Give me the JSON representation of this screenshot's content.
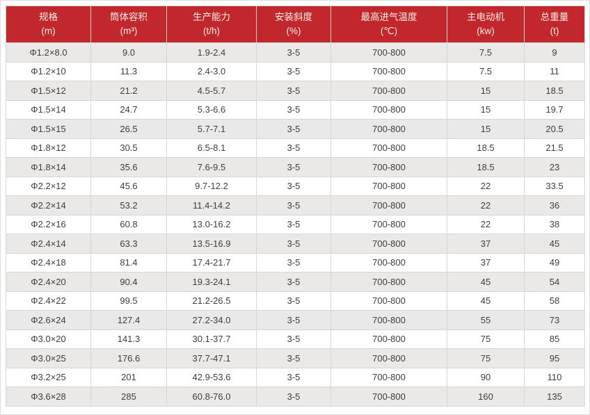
{
  "chart_data": {
    "type": "table",
    "columns": [
      {
        "label": "规格",
        "unit": "(m)"
      },
      {
        "label": "筒体容积",
        "unit": "(m³)"
      },
      {
        "label": "生产能力",
        "unit": "(t/h)"
      },
      {
        "label": "安装斜度",
        "unit": "(%)"
      },
      {
        "label": "最高进气温度",
        "unit": "(℃)"
      },
      {
        "label": "主电动机",
        "unit": "(kw)"
      },
      {
        "label": "总重量",
        "unit": "(t)"
      }
    ],
    "rows": [
      [
        "Φ1.2×8.0",
        "9.0",
        "1.9-2.4",
        "3-5",
        "700-800",
        "7.5",
        "9"
      ],
      [
        "Φ1.2×10",
        "11.3",
        "2.4-3.0",
        "3-5",
        "700-800",
        "7.5",
        "11"
      ],
      [
        "Φ1.5×12",
        "21.2",
        "4.5-5.7",
        "3-5",
        "700-800",
        "15",
        "18.5"
      ],
      [
        "Φ1.5×14",
        "24.7",
        "5.3-6.6",
        "3-5",
        "700-800",
        "15",
        "19.7"
      ],
      [
        "Φ1.5×15",
        "26.5",
        "5.7-7.1",
        "3-5",
        "700-800",
        "15",
        "20.5"
      ],
      [
        "Φ1.8×12",
        "30.5",
        "6.5-8.1",
        "3-5",
        "700-800",
        "18.5",
        "21.5"
      ],
      [
        "Φ1.8×14",
        "35.6",
        "7.6-9.5",
        "3-5",
        "700-800",
        "18.5",
        "23"
      ],
      [
        "Φ2.2×12",
        "45.6",
        "9.7-12.2",
        "3-5",
        "700-800",
        "22",
        "33.5"
      ],
      [
        "Φ2.2×14",
        "53.2",
        "11.4-14.2",
        "3-5",
        "700-800",
        "22",
        "36"
      ],
      [
        "Φ2.2×16",
        "60.8",
        "13.0-16.2",
        "3-5",
        "700-800",
        "22",
        "38"
      ],
      [
        "Φ2.4×14",
        "63.3",
        "13.5-16.9",
        "3-5",
        "700-800",
        "37",
        "45"
      ],
      [
        "Φ2.4×18",
        "81.4",
        "17.4-21.7",
        "3-5",
        "700-800",
        "37",
        "49"
      ],
      [
        "Φ2.4×20",
        "90.4",
        "19.3-24.1",
        "3-5",
        "700-800",
        "45",
        "54"
      ],
      [
        "Φ2.4×22",
        "99.5",
        "21.2-26.5",
        "3-5",
        "700-800",
        "45",
        "58"
      ],
      [
        "Φ2.6×24",
        "127.4",
        "27.2-34.0",
        "3-5",
        "700-800",
        "55",
        "73"
      ],
      [
        "Φ3.0×20",
        "141.3",
        "30.1-37.7",
        "3-5",
        "700-800",
        "75",
        "85"
      ],
      [
        "Φ3.0×25",
        "176.6",
        "37.7-47.1",
        "3-5",
        "700-800",
        "75",
        "95"
      ],
      [
        "Φ3.2×25",
        "201",
        "42.9-53.6",
        "3-5",
        "700-800",
        "90",
        "110"
      ],
      [
        "Φ3.6×28",
        "285",
        "60.8-76.0",
        "3-5",
        "700-800",
        "160",
        "135"
      ]
    ]
  },
  "colors": {
    "header_bg": "#c2272d",
    "header_text": "#f6eee4",
    "row_alt_bg": "#eae9e8",
    "row_bg": "#ffffff",
    "body_text": "#3d3d3d",
    "grid_border": "#d6d6d6",
    "header_border": "#dad2cc",
    "page_border": "#dddddd"
  }
}
